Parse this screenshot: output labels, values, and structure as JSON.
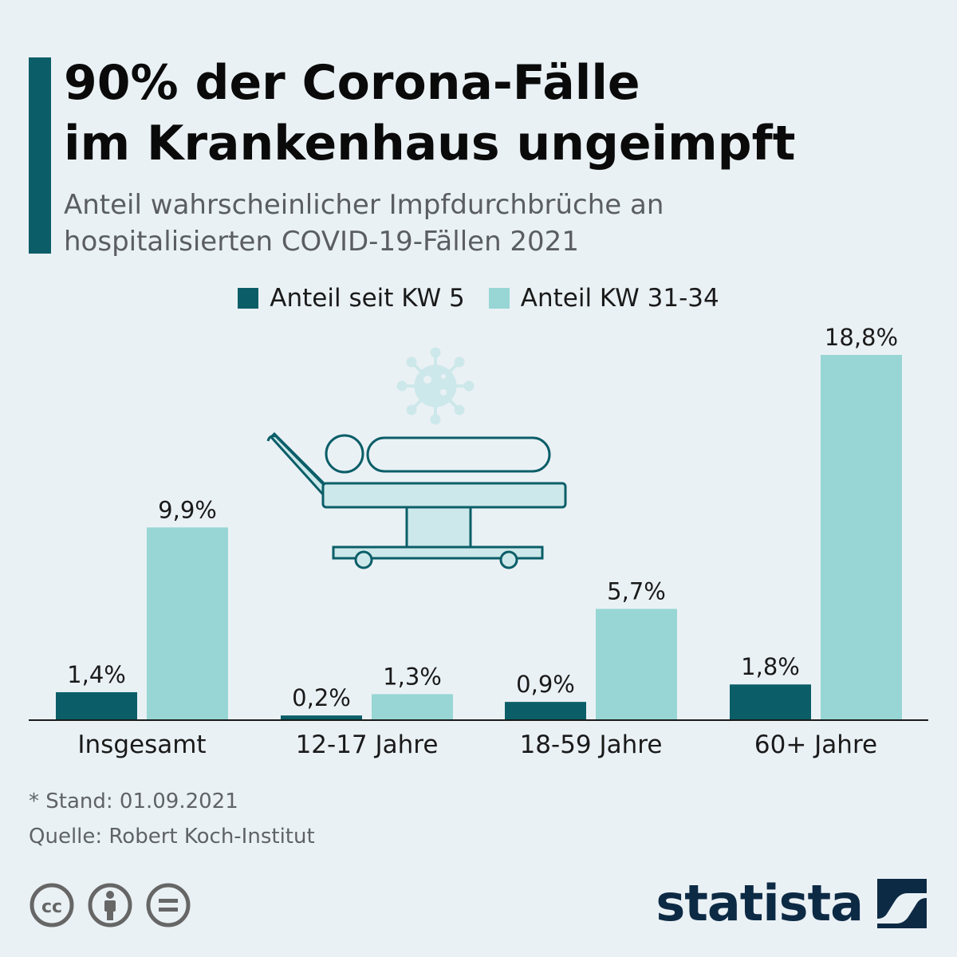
{
  "header": {
    "title_line1": "90% der Corona-Fälle",
    "title_line2": "im Krankenhaus ungeimpft",
    "subtitle_line1": "Anteil wahrscheinlicher Impfdurchbrüche an",
    "subtitle_line2": "hospitalisierten COVID-19-Fällen 2021"
  },
  "colors": {
    "dark": "#0b5e68",
    "light": "#97d6d4",
    "illustration_fill": "#cde8ea",
    "illustration_stroke": "#0b5e68",
    "brand": "#0d2a45"
  },
  "chart_data": {
    "type": "bar",
    "categories": [
      "Insgesamt",
      "12-17 Jahre",
      "18-59 Jahre",
      "60+ Jahre"
    ],
    "series": [
      {
        "name": "Anteil seit KW 5",
        "values": [
          1.4,
          0.2,
          0.9,
          1.8
        ],
        "labels": [
          "1,4%",
          "0,2%",
          "0,9%",
          "1,8%"
        ]
      },
      {
        "name": "Anteil KW 31-34",
        "values": [
          9.9,
          1.3,
          5.7,
          18.8
        ],
        "labels": [
          "9,9%",
          "1,3%",
          "5,7%",
          "18,8%"
        ]
      }
    ],
    "ylim": [
      0,
      20
    ],
    "grid": false,
    "legend": "top-center"
  },
  "footer": {
    "footnote": "* Stand: 01.09.2021",
    "source": "Quelle: Robert Koch-Institut",
    "brand": "statista",
    "cc_icon": "cc-icon",
    "by_icon": "person-icon",
    "nd_icon": "equals-icon"
  }
}
